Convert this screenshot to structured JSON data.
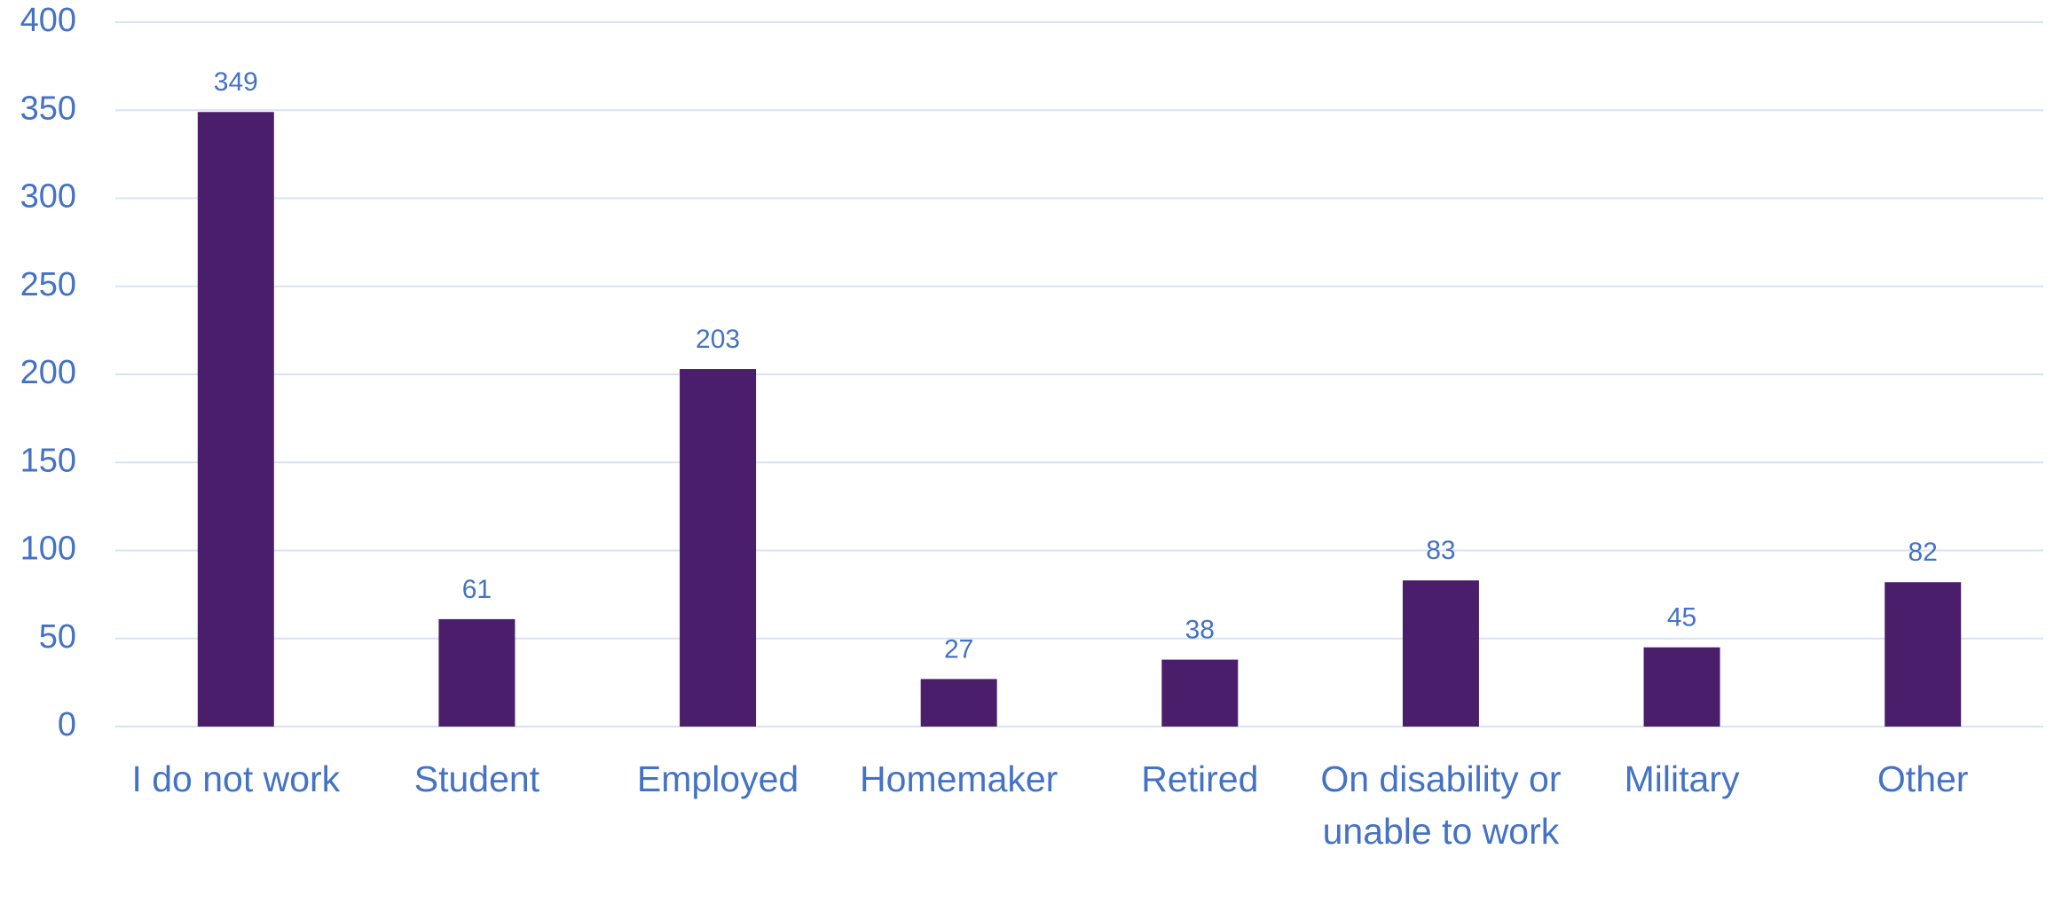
{
  "chart_data": {
    "type": "bar",
    "categories": [
      "I do not work",
      "Student",
      "Employed",
      "Homemaker",
      "Retired",
      "On disability or unable to work",
      "Military",
      "Other"
    ],
    "values": [
      349,
      61,
      203,
      27,
      38,
      83,
      45,
      82
    ],
    "color": "#4b1e6c",
    "ylim": [
      0,
      400
    ],
    "yticks": [
      0,
      50,
      100,
      150,
      200,
      250,
      300,
      350,
      400
    ],
    "grid": true
  }
}
